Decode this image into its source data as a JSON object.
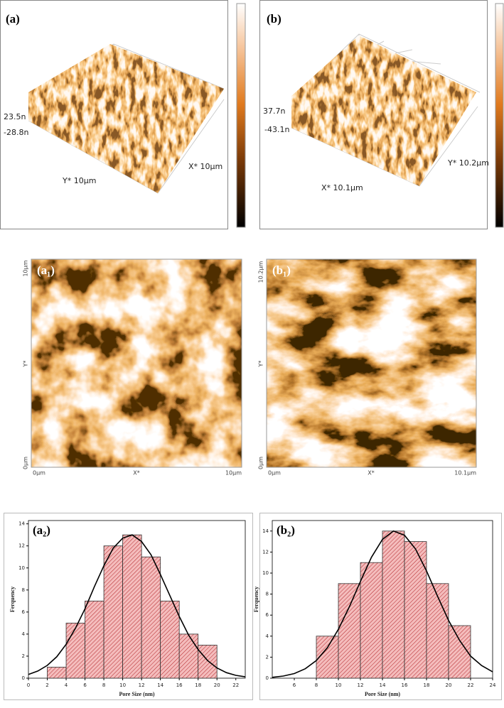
{
  "panels": [
    {
      "label": "(a)",
      "z_max": "23.5n",
      "z_min": "-28.8n",
      "y_axis": "Y* 10µm",
      "x_axis": "X* 10µm"
    },
    {
      "label": "(b)",
      "z_max": "37.7n",
      "z_min": "-43.1n",
      "x_axis": "X* 10.1µm",
      "y_axis": "Y* 10.2µm"
    }
  ],
  "images": [
    {
      "label": "(a₁)",
      "y_top": "10µm",
      "y_mid": "Y*",
      "y_bottom": "0µm",
      "x_left": "0µm",
      "x_mid": "X*",
      "x_right": "10µm"
    },
    {
      "label": "(b₁)",
      "y_top": "10.2µm",
      "y_mid": "Y*",
      "y_bottom": "0µm",
      "x_left": "0µm",
      "x_mid": "X*",
      "x_right": "10.1µm"
    }
  ],
  "chart_data": [
    {
      "type": "histogram",
      "label": "(a₂)",
      "xlabel": "Pore Size (nm)",
      "ylabel": "Ferquency",
      "bins": [
        2,
        4,
        6,
        8,
        10,
        12,
        14,
        16,
        18,
        20
      ],
      "values": [
        1,
        5,
        7,
        12,
        13,
        11,
        7,
        4,
        3
      ],
      "color": "#f4bcbc",
      "hatch_color": "#b3262b",
      "curve": {
        "x": [
          0,
          1,
          2,
          3,
          4,
          5,
          6,
          7,
          8,
          9,
          10,
          11,
          12,
          13,
          14,
          15,
          16,
          17,
          18,
          19,
          20,
          21,
          22,
          23
        ],
        "values": [
          0.34,
          0.65,
          1.16,
          1.94,
          3.07,
          4.55,
          6.3,
          8.3,
          10.2,
          11.8,
          12.7,
          13,
          12.4,
          11.2,
          9.4,
          7.5,
          5.6,
          3.9,
          2.6,
          1.6,
          0.93,
          0.5,
          0.26,
          0.12
        ],
        "color": "#000000"
      },
      "xlim": [
        0,
        23
      ],
      "xticks": [
        0,
        2,
        4,
        6,
        8,
        10,
        12,
        14,
        16,
        18,
        20,
        22
      ],
      "ylim": [
        0,
        14.3
      ],
      "yticks": [
        0,
        2,
        4,
        6,
        8,
        10,
        12,
        14
      ]
    },
    {
      "type": "histogram",
      "label": "(b₂)",
      "xlabel": "Pore Size (nm)",
      "ylabel": "Ferquency",
      "bins": [
        8,
        10,
        12,
        14,
        16,
        18,
        20,
        22
      ],
      "values": [
        4,
        9,
        11,
        14,
        13,
        9,
        5
      ],
      "color": "#f4bcbc",
      "hatch_color": "#b3262b",
      "curve": {
        "x": [
          4,
          5,
          6,
          7,
          8,
          9,
          10,
          11,
          12,
          13,
          14,
          15,
          16,
          17,
          18,
          19,
          20,
          21,
          22,
          23,
          24
        ],
        "values": [
          0.08,
          0.2,
          0.44,
          0.9,
          1.68,
          2.9,
          4.65,
          6.8,
          9.2,
          11.5,
          13.2,
          14,
          13.6,
          12.3,
          10.2,
          7.8,
          5.5,
          3.6,
          2.1,
          1.2,
          0.6
        ],
        "color": "#000000"
      },
      "xlim": [
        4,
        24
      ],
      "xticks": [
        6,
        8,
        10,
        12,
        14,
        16,
        18,
        20,
        22,
        24
      ],
      "ylim": [
        0,
        15
      ],
      "yticks": [
        0,
        2,
        4,
        6,
        8,
        10,
        12,
        14
      ]
    }
  ]
}
